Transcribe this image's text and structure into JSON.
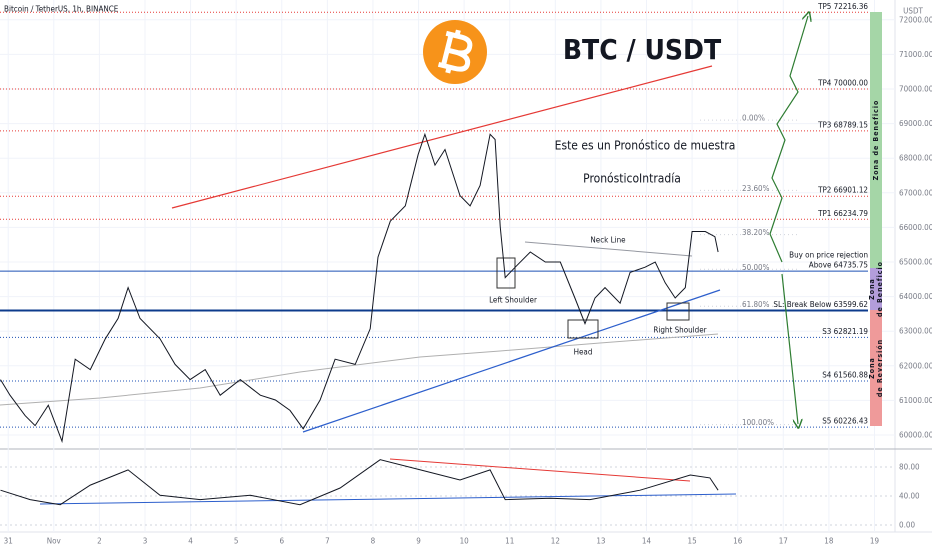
{
  "header": {
    "symbol": "Bitcoin / TetherUS, 1h, BINANCE",
    "currency": "USDT"
  },
  "chart_data": [
    {
      "type": "line",
      "title": "BTC / USDT",
      "annotations": [
        "Este es un Pronóstico de muestra",
        "PronósticoIntradía",
        "Neck Line",
        "Left Shoulder",
        "Head",
        "Right Shoulder"
      ],
      "x": [
        -0.17,
        0.04,
        0.37,
        0.59,
        0.88,
        1.18,
        1.47,
        1.8,
        2.13,
        2.41,
        2.63,
        2.89,
        3.33,
        3.66,
        3.99,
        4.32,
        4.65,
        5.09,
        5.53,
        5.86,
        6.18,
        6.47,
        6.84,
        7.17,
        7.61,
        7.94,
        8.11,
        8.38,
        8.71,
        8.99,
        9.14,
        9.36,
        9.58,
        9.91,
        10.13,
        10.35,
        10.57,
        10.68,
        10.79,
        10.9,
        11.12,
        11.45,
        11.78,
        12.11,
        12.43,
        12.65,
        12.87,
        13.09,
        13.42,
        13.64,
        13.97,
        14.19,
        14.41,
        14.63,
        14.85,
        15.0,
        15.29,
        15.5,
        15.57
      ],
      "xlim": [
        -0.18,
        19.45
      ],
      "xticks": [
        {
          "value": 0,
          "label": "31"
        },
        {
          "value": 1,
          "label": "Nov"
        },
        2,
        3,
        4,
        5,
        6,
        7,
        8,
        9,
        10,
        11,
        12,
        13,
        14,
        15,
        16,
        17,
        18,
        19
      ],
      "series": [
        {
          "color": "#131722",
          "values": [
            61600,
            61150,
            60560,
            60270,
            60860,
            59820,
            62190,
            61890,
            62780,
            63370,
            64260,
            63370,
            62780,
            62040,
            61600,
            61890,
            61150,
            61600,
            61150,
            61010,
            60710,
            60180,
            61010,
            62190,
            62040,
            63070,
            65140,
            66180,
            66620,
            68100,
            68690,
            67800,
            68250,
            66920,
            66620,
            67210,
            68690,
            68540,
            66030,
            64550,
            64850,
            65290,
            65000,
            65000,
            63960,
            63220,
            63960,
            64260,
            63810,
            64700,
            64850,
            65000,
            64400,
            63960,
            64260,
            65880,
            65880,
            65730,
            65290
          ]
        }
      ],
      "ylim": [
        59624,
        72572
      ],
      "yticks": [
        {
          "value": 60000,
          "label": "60000.00"
        },
        {
          "value": 61000,
          "label": "61000.00"
        },
        {
          "value": 62000,
          "label": "62000.00"
        },
        {
          "value": 63000,
          "label": "63000.00"
        },
        {
          "value": 64000,
          "label": "64000.00"
        },
        {
          "value": 65000,
          "label": "65000.00"
        },
        {
          "value": 66000,
          "label": "66000.00"
        },
        {
          "value": 67000,
          "label": "67000.00"
        },
        {
          "value": 68000,
          "label": "68000.00"
        },
        {
          "value": 69000,
          "label": "69000.00"
        },
        {
          "value": 70000,
          "label": "70000.00"
        },
        {
          "value": 71000,
          "label": "71000.00"
        },
        {
          "value": 72000,
          "label": "72000.00"
        }
      ],
      "levels": [
        {
          "label": "TP5 72216.36",
          "value": 72216.36,
          "color": "#e53935",
          "style": "dotted"
        },
        {
          "label": "TP4 70000.00",
          "value": 70000,
          "color": "#e53935",
          "style": "dotted"
        },
        {
          "label": "TP3 68789.15",
          "value": 68789.15,
          "color": "#e53935",
          "style": "dotted"
        },
        {
          "label": "TP2 66901.12",
          "value": 66901.12,
          "color": "#e53935",
          "style": "dotted"
        },
        {
          "label": "TP1 66234.79",
          "value": 66234.79,
          "color": "#e53935",
          "style": "dotted"
        },
        {
          "label": "Above 64735.75",
          "caption": "Buy on price rejection",
          "value": 64735.75,
          "color": "#1e50b4",
          "style": "solid"
        },
        {
          "label": "SL: Break Below 63599.62",
          "value": 63599.62,
          "color": "#0d3b8c",
          "style": "thick"
        },
        {
          "label": "S3 62821.19",
          "value": 62821.19,
          "color": "#1e50b4",
          "style": "dotted"
        },
        {
          "label": "S4 61560.88",
          "value": 61560.88,
          "color": "#1e50b4",
          "style": "dotted"
        },
        {
          "label": "S5 60226.43",
          "value": 60226.43,
          "color": "#1e50b4",
          "style": "dotted"
        }
      ],
      "fib": [
        {
          "label": "0.00%",
          "value": 69100
        },
        {
          "label": "23.60%",
          "value": 67070
        },
        {
          "label": "38.20%",
          "value": 65790
        },
        {
          "label": "50.00%",
          "value": 64790
        },
        {
          "label": "61.80%",
          "value": 63720
        },
        {
          "label": "100.00%",
          "value": 60300
        }
      ],
      "zones": [
        {
          "lines": [
            "Zona de Beneficio"
          ],
          "color": "#a5d6a7"
        },
        {
          "lines": [
            "Zona",
            "de Beneficio"
          ],
          "color": "#b39ddb"
        },
        {
          "lines": [
            "Zona",
            "de Reversión"
          ],
          "color": "#ef9a9a"
        }
      ]
    },
    {
      "type": "line",
      "x": [
        -0.17,
        0.48,
        1.14,
        1.8,
        2.63,
        3.33,
        4.21,
        5.31,
        6.4,
        7.28,
        8.16,
        9.04,
        9.91,
        10.57,
        10.9,
        11.89,
        12.76,
        13.86,
        14.96,
        15.39,
        15.57
      ],
      "values": [
        48,
        35,
        28,
        55,
        76,
        41,
        35,
        41,
        28,
        51,
        90,
        76,
        62,
        76,
        35,
        37,
        35,
        48,
        69,
        65,
        48
      ],
      "color": "#131722",
      "ylim": [
        -6.9,
        103.4
      ],
      "yticks": [
        {
          "value": 0,
          "label": "0.00"
        },
        {
          "value": 40,
          "label": "40.00"
        },
        {
          "value": 80,
          "label": "80.00"
        }
      ]
    }
  ]
}
